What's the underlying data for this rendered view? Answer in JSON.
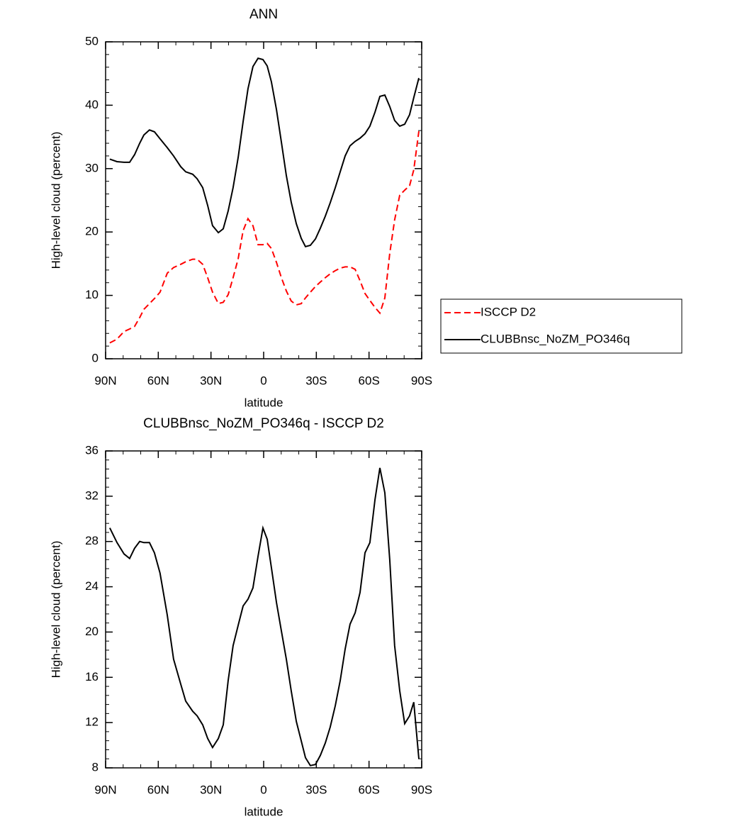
{
  "chart_data": [
    {
      "type": "line",
      "title": "ANN",
      "xlabel": "latitude",
      "ylabel": "High-level cloud (percent)",
      "x": [
        87.6,
        83.5,
        79.5,
        76.3,
        73.5,
        70.6,
        68.2,
        65.0,
        62.2,
        59.0,
        54.9,
        51.3,
        47.2,
        44.4,
        40.4,
        37.9,
        34.7,
        31.9,
        29.1,
        25.8,
        23.0,
        20.2,
        17.4,
        14.5,
        11.7,
        8.9,
        6.1,
        3.2,
        0.4,
        -2.0,
        -4.4,
        -7.3,
        -10.1,
        -12.9,
        -15.7,
        -18.6,
        -21.4,
        -23.8,
        -26.6,
        -29.5,
        -32.3,
        -35.1,
        -37.9,
        -40.8,
        -43.6,
        -46.4,
        -49.2,
        -52.1,
        -54.9,
        -57.7,
        -60.5,
        -63.4,
        -66.2,
        -69.0,
        -71.8,
        -74.6,
        -77.5,
        -80.3,
        -83.1,
        -85.5,
        -88.4
      ],
      "xlim": [
        90,
        -90
      ],
      "xticks": [
        {
          "value": 90,
          "label": "90N"
        },
        {
          "value": 60,
          "label": "60N"
        },
        {
          "value": 30,
          "label": "30N"
        },
        0,
        {
          "value": -30,
          "label": "30S"
        },
        {
          "value": -60,
          "label": "60S"
        },
        {
          "value": -90,
          "label": "90S"
        }
      ],
      "ylim": [
        0,
        50
      ],
      "yticks": [
        0,
        10,
        20,
        30,
        40,
        50
      ],
      "legend": "right",
      "series": [
        {
          "name": "ISCCP D2",
          "color": "#ff0000",
          "dash": true,
          "values": [
            2.5,
            3.1,
            4.3,
            4.7,
            5.1,
            6.5,
            7.8,
            8.7,
            9.5,
            10.5,
            13.5,
            14.4,
            14.9,
            15.3,
            15.7,
            15.7,
            14.9,
            12.8,
            10.5,
            8.7,
            8.9,
            10.1,
            12.8,
            15.8,
            20.2,
            22.1,
            21.0,
            18.0,
            18.0,
            18.2,
            17.4,
            15.2,
            12.8,
            10.7,
            9.1,
            8.5,
            8.7,
            9.6,
            10.5,
            11.4,
            12.1,
            12.8,
            13.4,
            13.9,
            14.3,
            14.5,
            14.5,
            14.1,
            12.3,
            10.3,
            9.2,
            8.1,
            7.2,
            9.6,
            16.6,
            21.9,
            25.8,
            26.6,
            27.3,
            29.8,
            35.9
          ]
        },
        {
          "name": "CLUBBnsc_NoZM_PO346q",
          "color": "#000000",
          "dash": false,
          "values": [
            31.5,
            31.1,
            31.0,
            31.0,
            32.2,
            34.0,
            35.3,
            36.1,
            35.8,
            34.7,
            33.3,
            32.0,
            30.3,
            29.5,
            29.1,
            28.4,
            27.0,
            24.2,
            21.0,
            19.9,
            20.5,
            23.3,
            27.0,
            31.8,
            37.4,
            42.6,
            46.1,
            47.4,
            47.2,
            46.2,
            43.7,
            39.3,
            34.2,
            28.9,
            24.7,
            21.3,
            19.0,
            17.7,
            17.9,
            18.9,
            20.6,
            22.5,
            24.6,
            27.0,
            29.5,
            32.0,
            33.6,
            34.3,
            34.8,
            35.5,
            36.7,
            38.9,
            41.4,
            41.6,
            39.8,
            37.6,
            36.7,
            37.0,
            38.5,
            41.2,
            44.3
          ]
        }
      ]
    },
    {
      "type": "line",
      "title": "CLUBBnsc_NoZM_PO346q - ISCCP D2",
      "xlabel": "latitude",
      "ylabel": "High-level cloud (percent)",
      "x": [
        87.6,
        83.5,
        79.5,
        76.3,
        73.5,
        70.6,
        68.2,
        65.0,
        62.2,
        59.0,
        54.9,
        51.3,
        47.2,
        44.4,
        40.4,
        37.9,
        34.7,
        31.9,
        29.1,
        25.8,
        23.0,
        20.2,
        17.4,
        14.5,
        11.7,
        8.9,
        6.1,
        3.2,
        0.4,
        -2.0,
        -4.4,
        -7.3,
        -10.1,
        -12.9,
        -15.7,
        -18.6,
        -21.4,
        -23.8,
        -26.6,
        -29.5,
        -32.3,
        -35.1,
        -37.9,
        -40.8,
        -43.6,
        -46.4,
        -49.2,
        -52.1,
        -54.9,
        -57.7,
        -60.5,
        -63.4,
        -66.2,
        -69.0,
        -71.8,
        -74.6,
        -77.5,
        -80.3,
        -83.1,
        -85.5,
        -88.4
      ],
      "xlim": [
        90,
        -90
      ],
      "xticks": [
        {
          "value": 90,
          "label": "90N"
        },
        {
          "value": 60,
          "label": "60N"
        },
        {
          "value": 30,
          "label": "30N"
        },
        0,
        {
          "value": -30,
          "label": "30S"
        },
        {
          "value": -60,
          "label": "60S"
        },
        {
          "value": -90,
          "label": "90S"
        }
      ],
      "ylim": [
        8,
        36
      ],
      "yticks": [
        8,
        12,
        16,
        20,
        24,
        28,
        32,
        36
      ],
      "series": [
        {
          "color": "#000000",
          "dash": false,
          "values": [
            29.2,
            27.9,
            26.9,
            26.5,
            27.4,
            28.0,
            27.9,
            27.9,
            27.0,
            25.2,
            21.5,
            17.6,
            15.4,
            13.9,
            13.0,
            12.6,
            11.8,
            10.6,
            9.8,
            10.6,
            11.8,
            15.7,
            18.8,
            20.6,
            22.3,
            22.9,
            23.9,
            26.7,
            29.2,
            28.2,
            25.7,
            22.6,
            20.1,
            17.6,
            14.8,
            12.1,
            10.4,
            8.9,
            8.2,
            8.3,
            9.1,
            10.2,
            11.6,
            13.5,
            15.7,
            18.5,
            20.7,
            21.7,
            23.5,
            27.0,
            27.9,
            31.7,
            34.5,
            32.3,
            26.4,
            18.8,
            14.8,
            11.9,
            12.6,
            13.8,
            8.8
          ]
        }
      ]
    }
  ]
}
